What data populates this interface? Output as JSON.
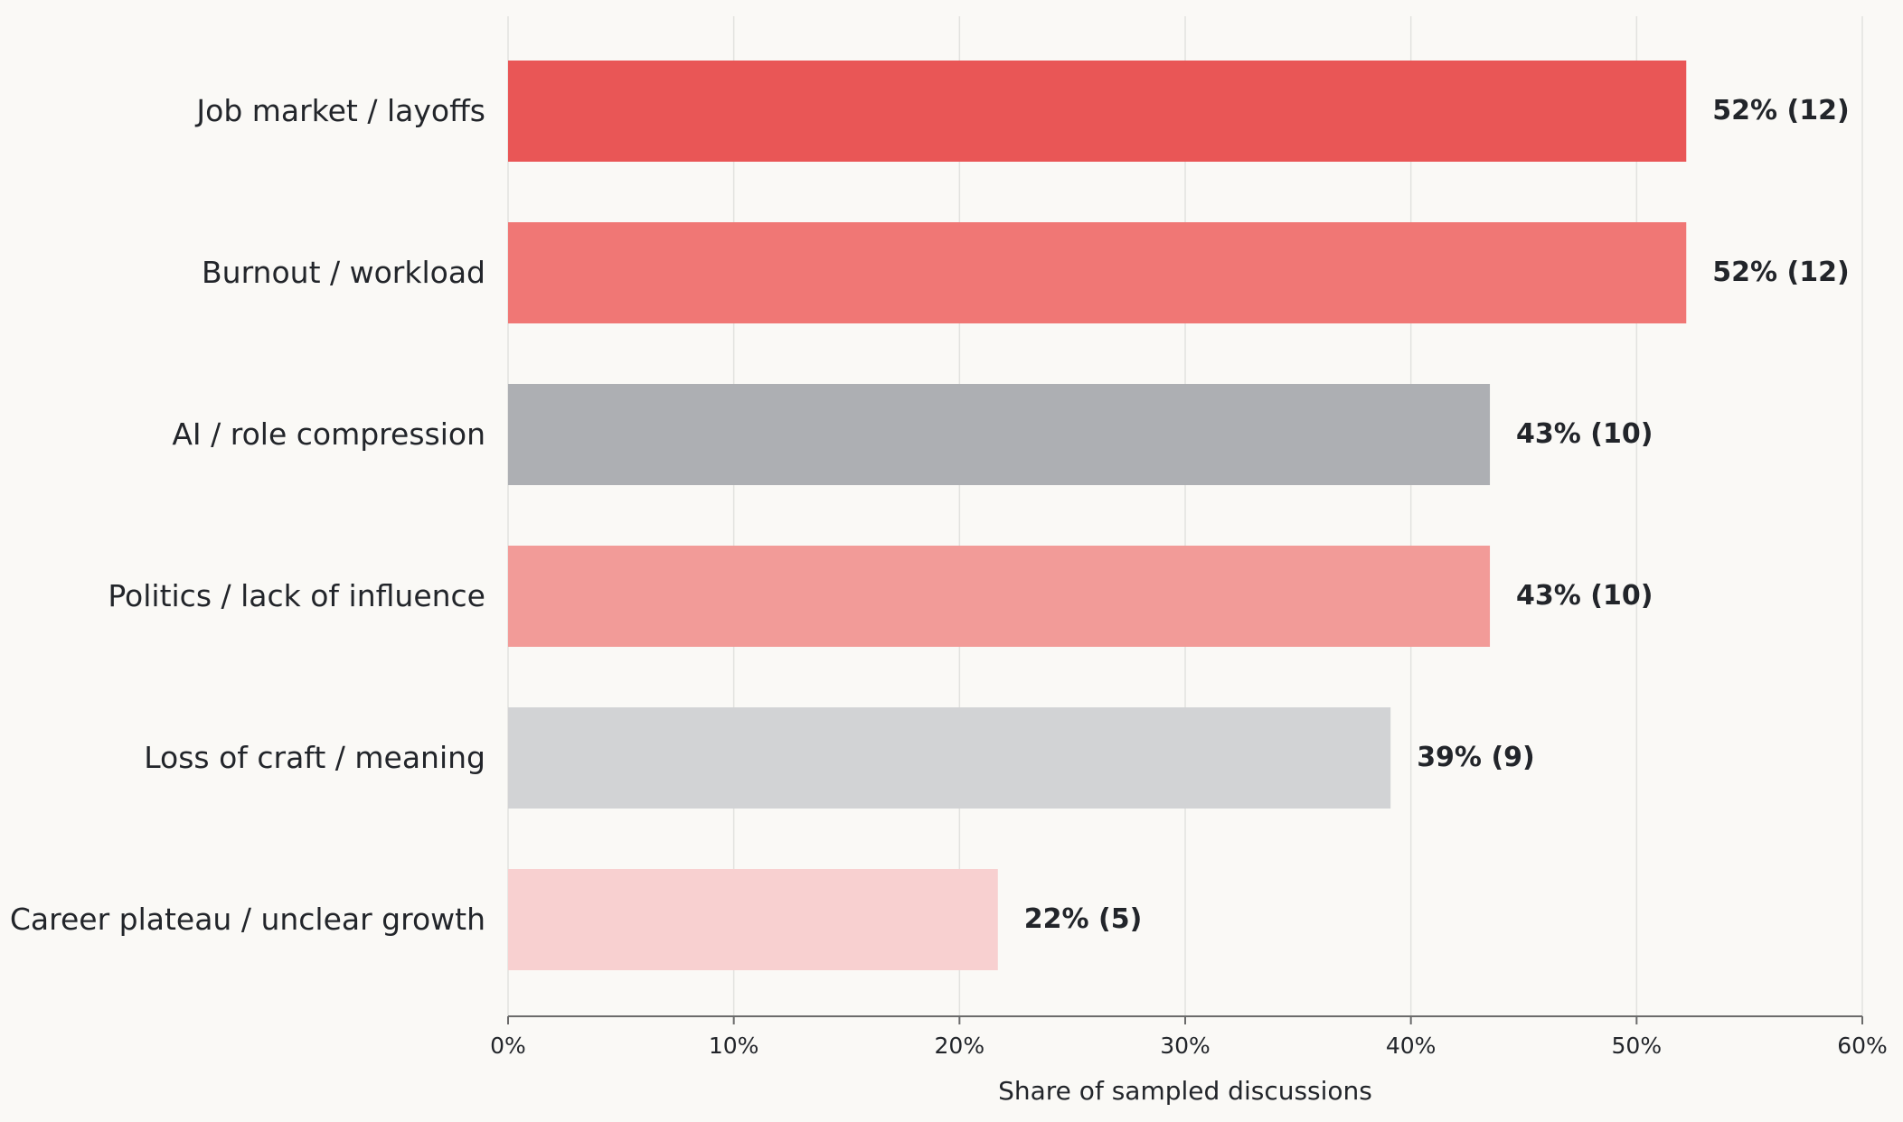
{
  "chart_data": {
    "type": "bar",
    "orientation": "horizontal",
    "categories": [
      "Job market / layoffs",
      "Burnout / workload",
      "AI / role compression",
      "Politics / lack of influence",
      "Loss of craft / meaning",
      "Career plateau / unclear growth"
    ],
    "values": [
      52.2,
      52.2,
      43.5,
      43.5,
      39.1,
      21.7
    ],
    "counts": [
      12,
      12,
      10,
      10,
      9,
      5
    ],
    "value_labels": [
      "52%  (12)",
      "52%  (12)",
      "43%  (10)",
      "43%  (10)",
      "39%  (9)",
      "22%  (5)"
    ],
    "colors": [
      "#e95656",
      "#f07775",
      "#adafb3",
      "#f29b98",
      "#d2d3d5",
      "#f8d0d0"
    ],
    "xlabel": "Share of sampled discussions",
    "xlim": [
      0,
      60
    ],
    "xticks": [
      0,
      10,
      20,
      30,
      40,
      50,
      60
    ],
    "xtick_labels": [
      "0%",
      "10%",
      "20%",
      "30%",
      "40%",
      "50%",
      "60%"
    ],
    "grid": true,
    "legend": false
  }
}
